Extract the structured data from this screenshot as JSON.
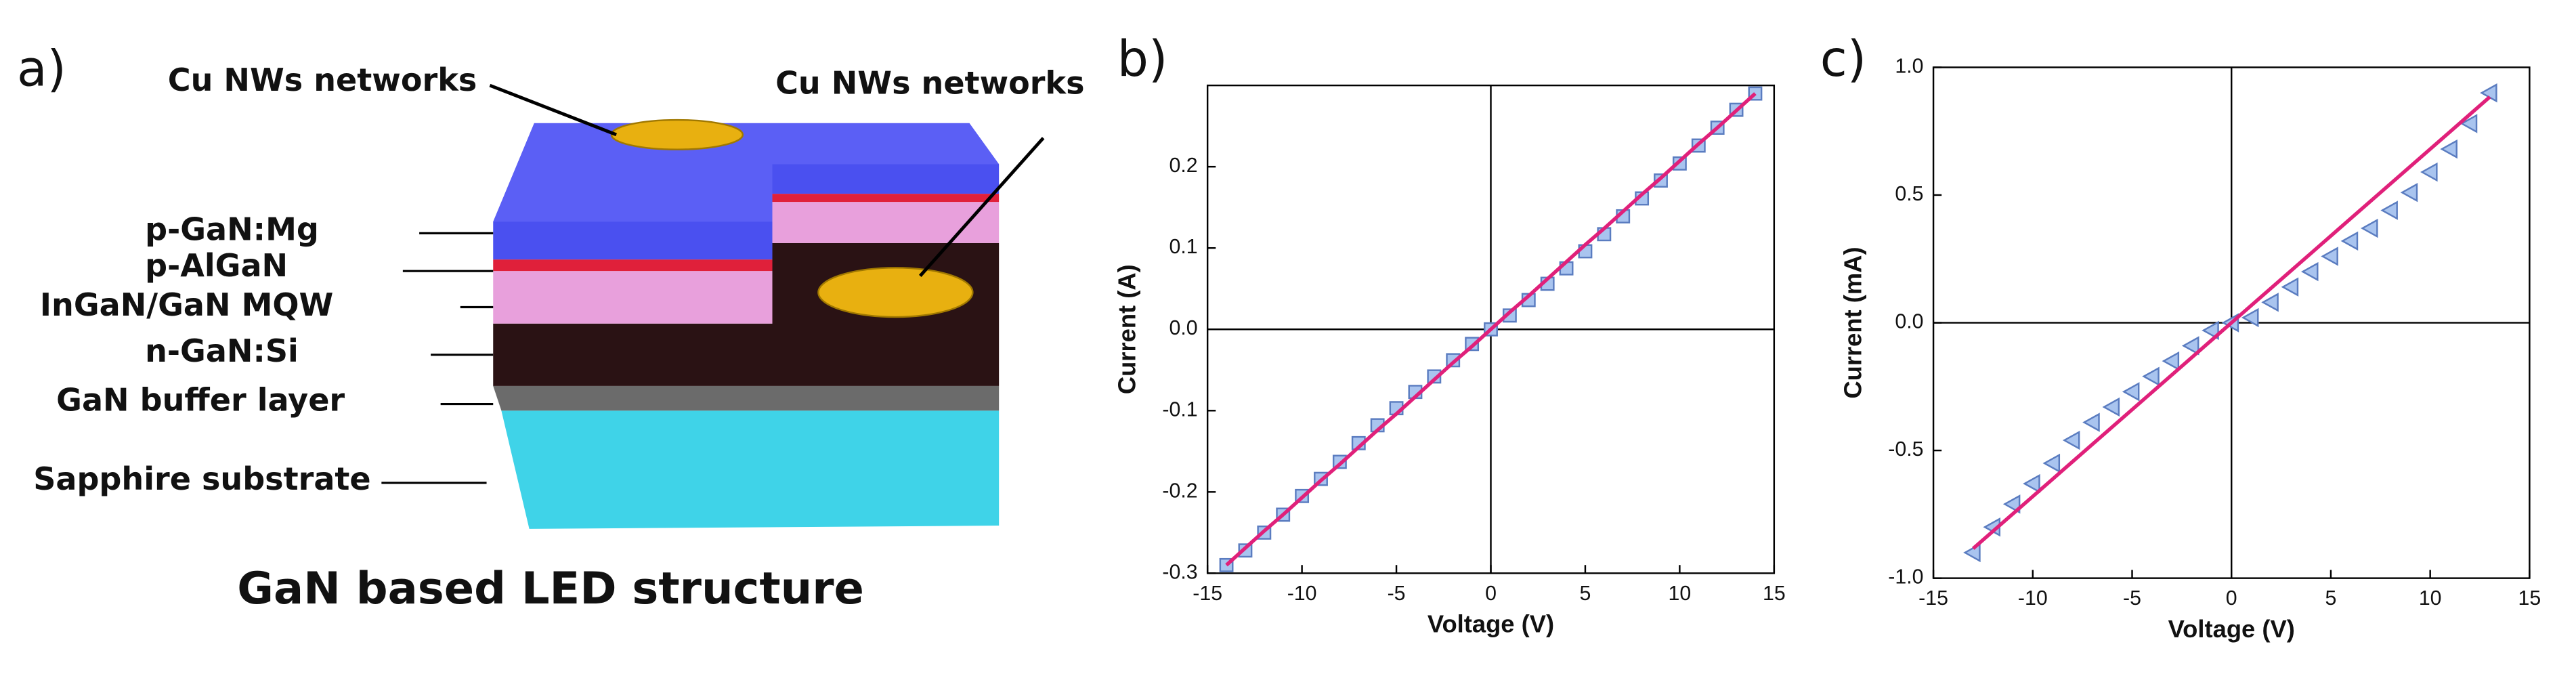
{
  "diagram": {
    "panel_label": "a)",
    "title": "GaN based LED structure",
    "callouts": [
      "Cu NWs networks",
      "Cu NWs networks"
    ],
    "layers": [
      "p-GaN:Mg",
      "p-AlGaN",
      "InGaN/GaN MQW",
      "n-GaN:Si",
      "GaN buffer layer",
      "Sapphire substrate"
    ]
  },
  "chart_data": [
    {
      "type": "scatter-fit",
      "panel_label": "b)",
      "xlabel": "Voltage (V)",
      "ylabel": "Current  (A)",
      "x": [
        -14,
        -13,
        -12,
        -11,
        -10,
        -9,
        -8,
        -7,
        -6,
        -5,
        -4,
        -3,
        -2,
        -1,
        0,
        1,
        2,
        3,
        4,
        5,
        6,
        7,
        8,
        9,
        10,
        11,
        12,
        13,
        14
      ],
      "series": [
        {
          "marker": "square",
          "color": "#a9c4ef",
          "values": [
            -0.29,
            -0.272,
            -0.25,
            -0.228,
            -0.205,
            -0.184,
            -0.163,
            -0.14,
            -0.118,
            -0.097,
            -0.077,
            -0.058,
            -0.038,
            -0.018,
            0.0,
            0.017,
            0.036,
            0.056,
            0.075,
            0.096,
            0.117,
            0.139,
            0.161,
            0.183,
            0.204,
            0.226,
            0.248,
            0.27,
            0.29
          ]
        },
        {
          "marker": "line",
          "color": "#e0207a",
          "values": [
            -0.29,
            -0.269,
            -0.248,
            -0.228,
            -0.207,
            -0.186,
            -0.166,
            -0.145,
            -0.124,
            -0.104,
            -0.083,
            -0.062,
            -0.041,
            -0.021,
            0,
            0.021,
            0.041,
            0.062,
            0.083,
            0.104,
            0.124,
            0.145,
            0.166,
            0.186,
            0.207,
            0.228,
            0.248,
            0.269,
            0.29
          ]
        }
      ],
      "xlim": [
        -15,
        15
      ],
      "xticks": [
        -15,
        -10,
        -5,
        0,
        5,
        10,
        15
      ],
      "ylim": [
        -0.3,
        0.3
      ],
      "yticks": [
        -0.3,
        -0.2,
        -0.1,
        {
          "value": 0,
          "label": "0.0"
        },
        0.1,
        0.2
      ]
    },
    {
      "type": "scatter-fit",
      "panel_label": "c)",
      "xlabel": "Voltage (V)",
      "ylabel": "Current (mA)",
      "x": [
        -13,
        -12,
        -11,
        -10,
        -9,
        -8,
        -7,
        -6,
        -5,
        -4,
        -3,
        -2,
        -1,
        0,
        1,
        2,
        3,
        4,
        5,
        6,
        7,
        8,
        9,
        10,
        11,
        12,
        13
      ],
      "series": [
        {
          "marker": "triangle",
          "color": "#a9c4ef",
          "values": [
            -0.9,
            -0.8,
            -0.71,
            -0.63,
            -0.55,
            -0.46,
            -0.39,
            -0.33,
            -0.27,
            -0.21,
            -0.15,
            -0.09,
            -0.03,
            0.0,
            0.02,
            0.08,
            0.14,
            0.2,
            0.26,
            0.32,
            0.37,
            0.44,
            0.51,
            0.59,
            0.68,
            0.78,
            0.9
          ]
        },
        {
          "marker": "line",
          "color": "#e0207a",
          "values": [
            -0.884,
            -0.816,
            -0.748,
            -0.68,
            -0.612,
            -0.544,
            -0.476,
            -0.408,
            -0.34,
            -0.272,
            -0.204,
            -0.136,
            -0.068,
            0,
            0.068,
            0.136,
            0.204,
            0.272,
            0.34,
            0.408,
            0.476,
            0.544,
            0.612,
            0.68,
            0.748,
            0.816,
            0.884
          ]
        }
      ],
      "xlim": [
        -15,
        15
      ],
      "xticks": [
        -15,
        -10,
        -5,
        0,
        5,
        10,
        15
      ],
      "ylim": [
        -1.0,
        1.0
      ],
      "yticks": [
        {
          "value": -1.0,
          "label": "-1.0"
        },
        -0.5,
        {
          "value": 0,
          "label": "0.0"
        },
        0.5,
        {
          "value": 1.0,
          "label": "1.0"
        }
      ]
    }
  ]
}
